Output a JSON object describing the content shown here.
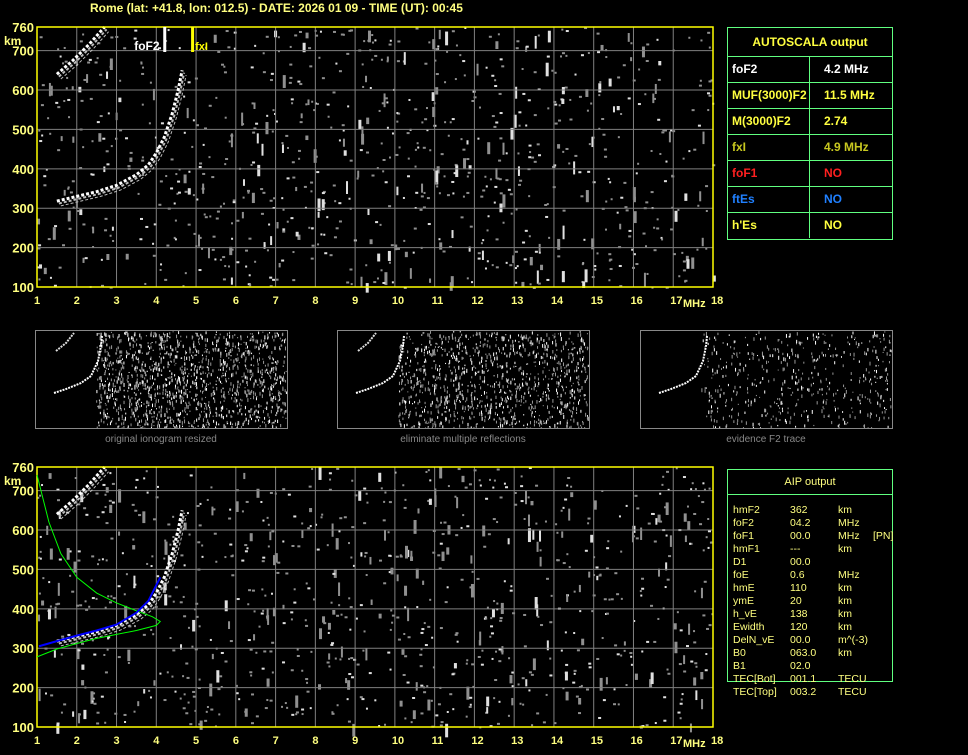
{
  "header": {
    "title": "Rome (lat: +41.8, lon: 012.5) - DATE: 2026 01 09 - TIME (UT): 00:45"
  },
  "ionogram": {
    "x_ticks": [
      "1",
      "2",
      "3",
      "4",
      "5",
      "6",
      "7",
      "8",
      "9",
      "10",
      "11",
      "12",
      "13",
      "14",
      "15",
      "16",
      "17",
      "18"
    ],
    "y_ticks": [
      "100",
      "200",
      "300",
      "400",
      "500",
      "600",
      "700",
      "760"
    ],
    "y_unit": "km",
    "x_unit": "MHz",
    "markers": {
      "foF2_label": "foF2",
      "fxI_label": "fxI"
    },
    "foF2_MHz": 4.2,
    "fxI_MHz": 4.9
  },
  "autoscala": {
    "title": "AUTOSCALA output",
    "rows": [
      {
        "key": "foF2",
        "value": "4.2 MHz",
        "color": "#ffffff"
      },
      {
        "key": "MUF(3000)F2",
        "value": "11.5 MHz",
        "color": "#ffff40"
      },
      {
        "key": "M(3000)F2",
        "value": "2.74",
        "color": "#ffff40"
      },
      {
        "key": "fxI",
        "value": "4.9 MHz",
        "color": "#c8c820"
      },
      {
        "key": "foF1",
        "value": "NO",
        "color": "#ff2020"
      },
      {
        "key": "ftEs",
        "value": "NO",
        "color": "#2080ff"
      },
      {
        "key": "h'Es",
        "value": "NO",
        "color": "#ffff40"
      }
    ]
  },
  "thumbnails": [
    {
      "caption": "original ionogram resized"
    },
    {
      "caption": "eliminate multiple reflections"
    },
    {
      "caption": "evidence F2 trace"
    }
  ],
  "aip": {
    "title": "AIP output",
    "rows": [
      {
        "k": "hmF2",
        "v": "362",
        "u": "km",
        "x": ""
      },
      {
        "k": "foF2",
        "v": "04.2",
        "u": "MHz",
        "x": ""
      },
      {
        "k": "foF1",
        "v": "00.0",
        "u": "MHz",
        "x": "[PN]"
      },
      {
        "k": "hmF1",
        "v": "---",
        "u": "km",
        "x": ""
      },
      {
        "k": "D1",
        "v": "00.0",
        "u": "",
        "x": ""
      },
      {
        "k": "foE",
        "v": "0.6",
        "u": "MHz",
        "x": ""
      },
      {
        "k": "hmE",
        "v": "110",
        "u": "km",
        "x": ""
      },
      {
        "k": "ymE",
        "v": "20",
        "u": "km",
        "x": ""
      },
      {
        "k": "h_vE",
        "v": "138",
        "u": "km",
        "x": ""
      },
      {
        "k": "Ewidth",
        "v": "120",
        "u": "km",
        "x": ""
      },
      {
        "k": "DelN_vE",
        "v": "00.0",
        "u": "m^(-3)",
        "x": ""
      },
      {
        "k": "B0",
        "v": "063.0",
        "u": "km",
        "x": ""
      },
      {
        "k": "B1",
        "v": "02.0",
        "u": "",
        "x": ""
      },
      {
        "k": "TEC[Bot]",
        "v": "001.1",
        "u": "TECU",
        "x": ""
      },
      {
        "k": "TEC[Top]",
        "v": "003.2",
        "u": "TECU",
        "x": ""
      }
    ]
  },
  "colors": {
    "frame": "#ffff00",
    "grid": "#808080",
    "table_border": "#60ff80",
    "model_trace": "#00ff00",
    "fitted_trace": "#0000ff"
  }
}
